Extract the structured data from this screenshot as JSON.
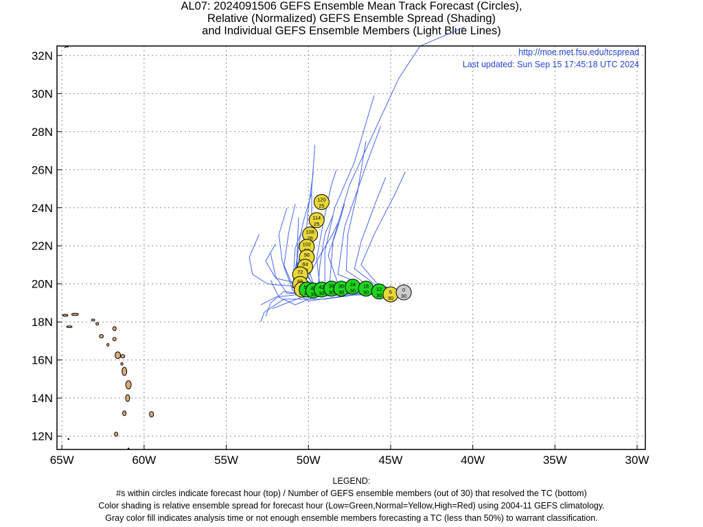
{
  "title": {
    "line1": "AL07: 2024091506 GEFS Ensemble Mean Track Forecast (Circles),",
    "line2": "Relative (Normalized) GEFS Ensemble Spread (Shading)",
    "line3": "and Individual GEFS Ensemble Members (Light Blue Lines)"
  },
  "info": {
    "url": "http://moe.met.fsu.edu/tcspread",
    "updated": "Last updated: Sun Sep 15 17:45:18 UTC 2024"
  },
  "axes": {
    "lon_labels": [
      "65W",
      "60W",
      "55W",
      "50W",
      "45W",
      "40W",
      "35W",
      "30W"
    ],
    "lat_labels": [
      "12N",
      "14N",
      "16N",
      "18N",
      "20N",
      "22N",
      "24N",
      "26N",
      "28N",
      "30N",
      "32N"
    ],
    "lon_range": [
      -65.3,
      -29.5
    ],
    "lat_range": [
      11.3,
      32.5
    ],
    "grid": true
  },
  "colors": {
    "low_spread": "#1ed51e",
    "normal_spread": "#e8d83a",
    "analysis": "#cccccc",
    "member_tracks": "#3355ee",
    "land": "#d9a97a"
  },
  "mean_track": [
    {
      "hour": "0",
      "members": "30",
      "lon": -44.2,
      "lat": 19.55,
      "class": "analysis"
    },
    {
      "hour": "6",
      "members": "30",
      "lon": -45.0,
      "lat": 19.45,
      "class": "normal"
    },
    {
      "hour": "12",
      "members": "30",
      "lon": -45.7,
      "lat": 19.6,
      "class": "low"
    },
    {
      "hour": "18",
      "members": "30",
      "lon": -46.5,
      "lat": 19.75,
      "class": "low"
    },
    {
      "hour": "24",
      "members": "30",
      "lon": -47.3,
      "lat": 19.85,
      "class": "low"
    },
    {
      "hour": "30",
      "members": "30",
      "lon": -48.0,
      "lat": 19.75,
      "class": "low"
    },
    {
      "hour": "36",
      "members": "30",
      "lon": -48.6,
      "lat": 19.75,
      "class": "low"
    },
    {
      "hour": "42",
      "members": "30",
      "lon": -49.2,
      "lat": 19.7,
      "class": "low"
    },
    {
      "hour": "48",
      "members": "30",
      "lon": -49.7,
      "lat": 19.65,
      "class": "low"
    },
    {
      "hour": "54",
      "members": "30",
      "lon": -50.1,
      "lat": 19.7,
      "class": "low"
    },
    {
      "hour": "60",
      "members": "30",
      "lon": -50.4,
      "lat": 19.7,
      "class": "normal"
    },
    {
      "hour": "66",
      "members": "30",
      "lon": -50.5,
      "lat": 20.0,
      "class": "normal"
    },
    {
      "hour": "72",
      "members": "30",
      "lon": -50.5,
      "lat": 20.5,
      "class": "normal"
    },
    {
      "hour": "84",
      "members": "30",
      "lon": -50.2,
      "lat": 20.9,
      "class": "normal"
    },
    {
      "hour": "96",
      "members": "30",
      "lon": -50.1,
      "lat": 21.4,
      "class": "normal"
    },
    {
      "hour": "102",
      "members": "28",
      "lon": -50.1,
      "lat": 21.95,
      "class": "normal"
    },
    {
      "hour": "108",
      "members": "26",
      "lon": -49.9,
      "lat": 22.6,
      "class": "normal"
    },
    {
      "hour": "114",
      "members": "25",
      "lon": -49.5,
      "lat": 23.35,
      "class": "normal"
    },
    {
      "hour": "120",
      "members": "25",
      "lon": -49.2,
      "lat": 24.3,
      "class": "normal"
    }
  ],
  "legend": {
    "heading": "LEGEND:",
    "line1": "#s within circles indicate forecast hour (top) / Number of GEFS ensemble members (out of 30) that resolved the TC (bottom)",
    "line2": "Color shading is relative ensemble spread for forecast hour (Low=Green,Normal=Yellow,High=Red) using 2004-11 GEFS climatology.",
    "line3": "Gray color fill indicates analysis time or not enough ensemble members forecasting a TC (less than 50%) to warrant classification."
  }
}
